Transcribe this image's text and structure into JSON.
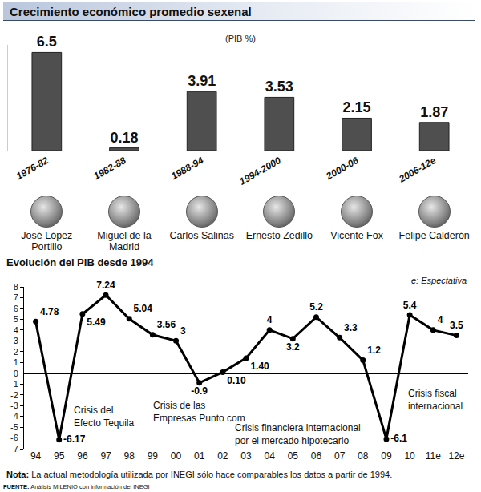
{
  "chart_data": [
    {
      "type": "bar",
      "title": "Crecimiento económico promedio sexenal",
      "subtitle": "(PIB %)",
      "categories": [
        "1976-82",
        "1982-88",
        "1988-94",
        "1994-2000",
        "2000-06",
        "2006-12e"
      ],
      "values": [
        6.5,
        0.18,
        3.91,
        3.53,
        2.15,
        1.87
      ],
      "color": "#4f4f4f",
      "ylim": [
        0,
        7
      ],
      "yticks": [],
      "tick_labels": "x",
      "data_labels": true,
      "grid": false,
      "annotations": [
        "José López Portillo",
        "Miguel de la Madrid",
        "Carlos Salinas",
        "Ernesto Zedillo",
        "Vicente Fox",
        "Felipe Calderón"
      ]
    },
    {
      "type": "line",
      "title": "Evolución del PIB desde 1994",
      "categories": [
        "94",
        "95",
        "96",
        "97",
        "98",
        "99",
        "00",
        "01",
        "02",
        "03",
        "04",
        "05",
        "06",
        "07",
        "08",
        "09",
        "10",
        "11e",
        "12e"
      ],
      "values": [
        4.78,
        -6.17,
        5.49,
        7.24,
        5.04,
        3.56,
        3,
        -0.9,
        0.1,
        1.4,
        4,
        3.2,
        5.2,
        3.3,
        1.2,
        -6.1,
        5.4,
        4,
        3.5
      ],
      "value_labels": [
        "4.78",
        "-6.17",
        "5.49",
        "7.24",
        "5.04",
        "3.56",
        "3",
        "-0.9",
        "0.10",
        "1.40",
        "4",
        "3.2",
        "5.2",
        "3.3",
        "1.2",
        "-6.1",
        "5.4",
        "4",
        "3.5"
      ],
      "color": "#000000",
      "marker": "circle",
      "line_style": "solid",
      "ylim": [
        -7,
        8
      ],
      "yticks": [
        -7,
        -6,
        -5,
        -4,
        -3,
        -2,
        -1,
        0,
        1,
        2,
        3,
        4,
        5,
        6,
        7,
        8
      ],
      "grid": false,
      "data_labels": true,
      "annotations": [
        "e: Espectativa",
        "Crisis del Efecto Tequila",
        "Crisis de las Empresas Punto com",
        "Crisis financiera internacional por el mercado hipotecario",
        "Crisis fiscal internacional"
      ]
    }
  ],
  "note": "Nota: La actual metodología utilizada por INEGI sólo hace comparables los datos a partir de 1994.",
  "source": "FUENTE: Análisis MILENIO con información del INEGI"
}
